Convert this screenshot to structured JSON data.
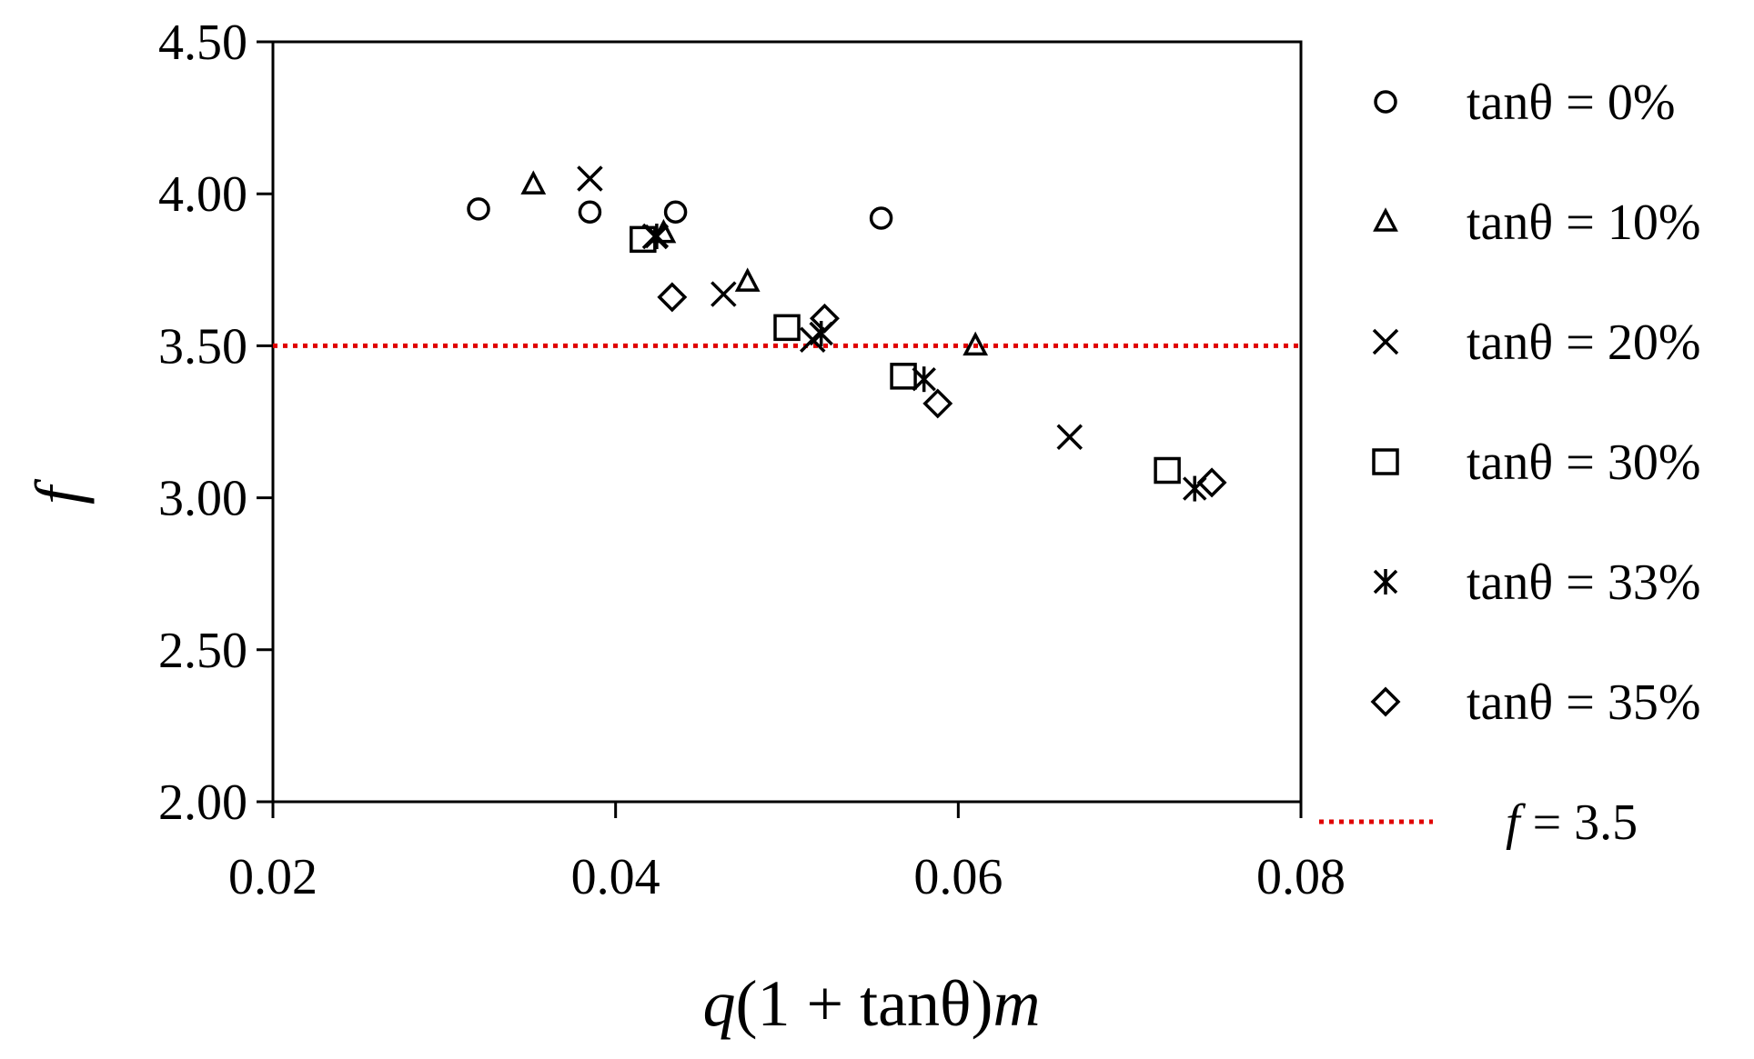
{
  "chart_data": {
    "type": "scatter",
    "xlabel_parts": [
      {
        "text": "q",
        "italic": true
      },
      {
        "text": "(1 + tanθ)",
        "italic": false
      },
      {
        "text": "m",
        "italic": true
      }
    ],
    "ylabel": "f",
    "xlim": [
      0.02,
      0.08
    ],
    "ylim": [
      2.0,
      4.5
    ],
    "xticks": [
      0.02,
      0.04,
      0.06,
      0.08
    ],
    "xtick_labels": [
      "0.02",
      "0.04",
      "0.06",
      "0.08"
    ],
    "yticks": [
      2.0,
      2.5,
      3.0,
      3.5,
      4.0,
      4.5
    ],
    "ytick_labels": [
      "2.00",
      "2.50",
      "3.00",
      "3.50",
      "4.00",
      "4.50"
    ],
    "grid": false,
    "legend_position": "right",
    "series": [
      {
        "name": "tanθ = 0%",
        "marker": "circle",
        "points": [
          [
            0.032,
            3.95
          ],
          [
            0.0385,
            3.94
          ],
          [
            0.0435,
            3.94
          ],
          [
            0.0555,
            3.92
          ]
        ]
      },
      {
        "name": "tanθ = 10%",
        "marker": "triangle",
        "points": [
          [
            0.0352,
            4.03
          ],
          [
            0.0428,
            3.87
          ],
          [
            0.0477,
            3.71
          ],
          [
            0.061,
            3.5
          ]
        ]
      },
      {
        "name": "tanθ = 20%",
        "marker": "x",
        "points": [
          [
            0.0385,
            4.05
          ],
          [
            0.0423,
            3.86
          ],
          [
            0.0463,
            3.67
          ],
          [
            0.0515,
            3.52
          ],
          [
            0.0665,
            3.2
          ]
        ]
      },
      {
        "name": "tanθ = 30%",
        "marker": "square",
        "points": [
          [
            0.0416,
            3.85
          ],
          [
            0.05,
            3.56
          ],
          [
            0.0568,
            3.4
          ],
          [
            0.0722,
            3.09
          ]
        ]
      },
      {
        "name": "tanθ = 33%",
        "marker": "asterisk",
        "points": [
          [
            0.0424,
            3.86
          ],
          [
            0.052,
            3.54
          ],
          [
            0.058,
            3.39
          ],
          [
            0.0738,
            3.03
          ]
        ]
      },
      {
        "name": "tanθ = 35%",
        "marker": "diamond",
        "points": [
          [
            0.0433,
            3.66
          ],
          [
            0.0522,
            3.59
          ],
          [
            0.0588,
            3.31
          ],
          [
            0.0748,
            3.05
          ]
        ]
      }
    ],
    "reference_line": {
      "label_prefix": "f",
      "label_suffix": " = 3.5",
      "y": 3.5,
      "color": "#e00000",
      "style": "dotted"
    }
  }
}
